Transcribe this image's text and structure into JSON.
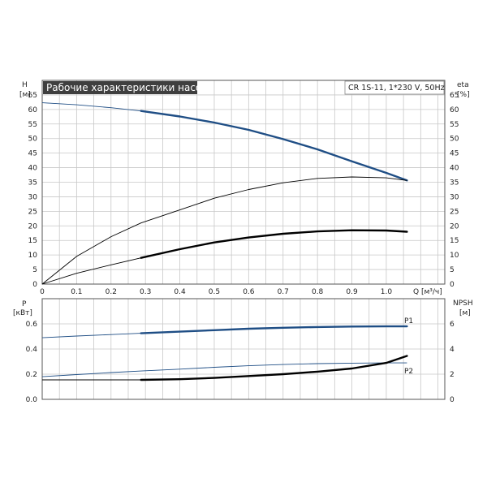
{
  "title": "Рабочие характеристики насоса",
  "model": "CR 1S-11, 1*230 V, 50Hz",
  "colors": {
    "blue": "#1f4e85",
    "black": "#000000",
    "grid": "#c8c8c8",
    "title_bg": "#3f3f3f"
  },
  "chart_data": [
    {
      "type": "line",
      "name": "upper-chart",
      "xlabel": "Q [м³/ч]",
      "ylabel_left": {
        "name": "H",
        "unit": "[м]"
      },
      "ylabel_right": {
        "name": "eta",
        "unit": "[%]"
      },
      "xlim": [
        0,
        1.17
      ],
      "ylim": [
        0,
        70
      ],
      "x_ticks": [
        "0",
        "0.1",
        "0.2",
        "0.3",
        "0.4",
        "0.5",
        "0.6",
        "0.7",
        "0.8",
        "0.9",
        "1.0"
      ],
      "y_ticks": [
        "0",
        "5",
        "10",
        "15",
        "20",
        "25",
        "30",
        "35",
        "40",
        "45",
        "50",
        "55",
        "60",
        "65"
      ],
      "grid": true,
      "series": [
        {
          "name": "",
          "color": "#1f4e85",
          "points": [
            [
              0,
              62.3
            ],
            [
              0.1,
              61.6
            ],
            [
              0.2,
              60.6
            ],
            [
              0.287,
              59.5
            ],
            [
              0.4,
              57.6
            ],
            [
              0.5,
              55.5
            ],
            [
              0.6,
              53.0
            ],
            [
              0.7,
              49.8
            ],
            [
              0.8,
              46.3
            ],
            [
              0.9,
              42.2
            ],
            [
              1.0,
              38.2
            ],
            [
              1.06,
              35.6
            ]
          ],
          "op_start": 0.287
        },
        {
          "name": "",
          "color": "#000000",
          "points": [
            [
              0,
              0
            ],
            [
              0.1,
              9.5
            ],
            [
              0.2,
              16.3
            ],
            [
              0.287,
              21.0
            ],
            [
              0.4,
              25.5
            ],
            [
              0.5,
              29.5
            ],
            [
              0.6,
              32.5
            ],
            [
              0.7,
              34.8
            ],
            [
              0.8,
              36.3
            ],
            [
              0.9,
              36.8
            ],
            [
              1.0,
              36.5
            ],
            [
              1.06,
              35.6
            ]
          ],
          "op_start": 1.1
        },
        {
          "name": "",
          "color": "#000000",
          "points": [
            [
              0,
              0
            ],
            [
              0.1,
              3.7
            ],
            [
              0.2,
              6.6
            ],
            [
              0.287,
              9.0
            ],
            [
              0.4,
              12.0
            ],
            [
              0.5,
              14.3
            ],
            [
              0.6,
              16.0
            ],
            [
              0.7,
              17.3
            ],
            [
              0.8,
              18.1
            ],
            [
              0.9,
              18.5
            ],
            [
              1.0,
              18.4
            ],
            [
              1.06,
              18.0
            ]
          ],
          "op_start": 0.287
        }
      ]
    },
    {
      "type": "line",
      "name": "lower-chart",
      "ylabel_left": {
        "name": "P",
        "unit": "[кВт]"
      },
      "ylabel_right": {
        "name": "NPSH",
        "unit": "[м]"
      },
      "xlim": [
        0,
        1.17
      ],
      "ylim": [
        0,
        0.8
      ],
      "y_ticks": [
        "0.0",
        "0.2",
        "0.4",
        "0.6"
      ],
      "y_ticks_right": [
        "0",
        "2",
        "4",
        "6"
      ],
      "grid": true,
      "series": [
        {
          "name": "P1",
          "color": "#1f4e85",
          "points": [
            [
              0,
              0.49
            ],
            [
              0.1,
              0.503
            ],
            [
              0.2,
              0.515
            ],
            [
              0.287,
              0.525
            ],
            [
              0.4,
              0.538
            ],
            [
              0.5,
              0.55
            ],
            [
              0.6,
              0.561
            ],
            [
              0.7,
              0.569
            ],
            [
              0.8,
              0.575
            ],
            [
              0.9,
              0.579
            ],
            [
              1.0,
              0.58
            ],
            [
              1.06,
              0.58
            ]
          ],
          "op_start": 0.287
        },
        {
          "name": "P2",
          "color": "#1f4e85",
          "points": [
            [
              0,
              0.18
            ],
            [
              0.1,
              0.197
            ],
            [
              0.2,
              0.213
            ],
            [
              0.287,
              0.225
            ],
            [
              0.4,
              0.24
            ],
            [
              0.5,
              0.255
            ],
            [
              0.6,
              0.267
            ],
            [
              0.7,
              0.277
            ],
            [
              0.8,
              0.284
            ],
            [
              0.9,
              0.288
            ],
            [
              1.0,
              0.29
            ],
            [
              1.06,
              0.29
            ]
          ],
          "op_start": 1.1
        },
        {
          "name": "",
          "color": "#000000",
          "points": [
            [
              0,
              0.155
            ],
            [
              0.1,
              0.155
            ],
            [
              0.2,
              0.155
            ],
            [
              0.287,
              0.155
            ],
            [
              0.4,
              0.16
            ],
            [
              0.5,
              0.17
            ],
            [
              0.6,
              0.185
            ],
            [
              0.7,
              0.2
            ],
            [
              0.8,
              0.22
            ],
            [
              0.9,
              0.245
            ],
            [
              1.0,
              0.29
            ],
            [
              1.06,
              0.345
            ]
          ],
          "op_start": 0.287
        }
      ]
    }
  ]
}
